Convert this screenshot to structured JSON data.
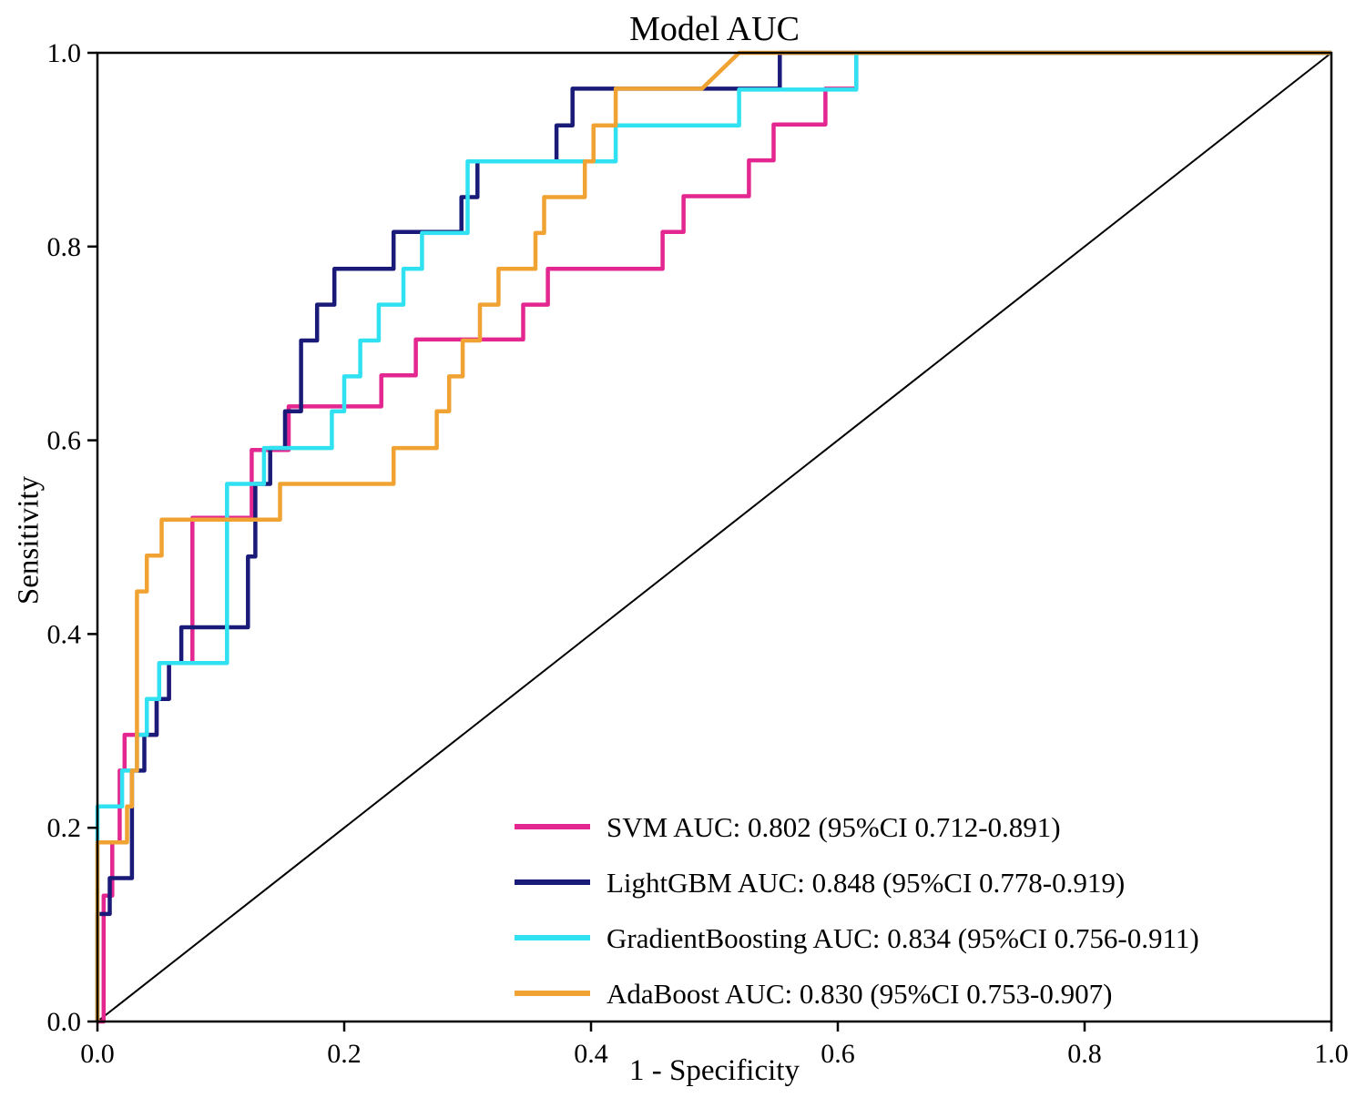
{
  "chart_data": {
    "type": "line",
    "subtype": "roc-step-curves",
    "title": "Model AUC",
    "xlabel": "1 - Specificity",
    "ylabel": "Sensitivity",
    "xlim": [
      0,
      1
    ],
    "ylim": [
      0,
      1
    ],
    "grid": false,
    "legend_position": "lower right",
    "xticks": [
      0,
      0.2,
      0.4,
      0.6,
      0.8,
      1.0
    ],
    "xtick_labels": [
      "0.0",
      "0.2",
      "0.4",
      "0.6",
      "0.8",
      "1.0"
    ],
    "yticks": [
      0,
      0.2,
      0.4,
      0.6,
      0.8,
      1.0
    ],
    "ytick_labels": [
      "0.0",
      "0.2",
      "0.4",
      "0.6",
      "0.8",
      "1.0"
    ],
    "reference_line": {
      "name": "chance-diagonal",
      "points": [
        [
          0,
          0
        ],
        [
          1,
          1
        ]
      ],
      "color": "#000000"
    },
    "series": [
      {
        "name": "SVM",
        "label": "SVM AUC: 0.802 (95%CI 0.712-0.891)",
        "auc": "0.802",
        "ci": "0.712-0.891",
        "color": "#E32690",
        "points": [
          [
            0,
            0
          ],
          [
            0.005,
            0
          ],
          [
            0.005,
            0.13
          ],
          [
            0.012,
            0.13
          ],
          [
            0.012,
            0.185
          ],
          [
            0.018,
            0.185
          ],
          [
            0.018,
            0.259
          ],
          [
            0.022,
            0.259
          ],
          [
            0.022,
            0.296
          ],
          [
            0.048,
            0.296
          ],
          [
            0.048,
            0.333
          ],
          [
            0.058,
            0.333
          ],
          [
            0.058,
            0.37
          ],
          [
            0.077,
            0.37
          ],
          [
            0.077,
            0.52
          ],
          [
            0.125,
            0.52
          ],
          [
            0.125,
            0.59
          ],
          [
            0.155,
            0.59
          ],
          [
            0.155,
            0.635
          ],
          [
            0.23,
            0.635
          ],
          [
            0.23,
            0.667
          ],
          [
            0.258,
            0.667
          ],
          [
            0.258,
            0.704
          ],
          [
            0.345,
            0.704
          ],
          [
            0.345,
            0.74
          ],
          [
            0.365,
            0.74
          ],
          [
            0.365,
            0.777
          ],
          [
            0.458,
            0.777
          ],
          [
            0.458,
            0.815
          ],
          [
            0.475,
            0.815
          ],
          [
            0.475,
            0.852
          ],
          [
            0.528,
            0.852
          ],
          [
            0.528,
            0.889
          ],
          [
            0.548,
            0.889
          ],
          [
            0.548,
            0.926
          ],
          [
            0.59,
            0.926
          ],
          [
            0.59,
            0.963
          ],
          [
            0.615,
            0.963
          ],
          [
            0.615,
            1
          ],
          [
            1,
            1
          ]
        ]
      },
      {
        "name": "LightGBM",
        "label": "LightGBM AUC: 0.848 (95%CI 0.778-0.919)",
        "auc": "0.848",
        "ci": "0.778-0.919",
        "color": "#1A1A78",
        "points": [
          [
            0,
            0
          ],
          [
            0,
            0.111
          ],
          [
            0.01,
            0.111
          ],
          [
            0.01,
            0.148
          ],
          [
            0.028,
            0.148
          ],
          [
            0.028,
            0.259
          ],
          [
            0.038,
            0.259
          ],
          [
            0.038,
            0.296
          ],
          [
            0.048,
            0.296
          ],
          [
            0.048,
            0.333
          ],
          [
            0.058,
            0.333
          ],
          [
            0.058,
            0.37
          ],
          [
            0.068,
            0.37
          ],
          [
            0.068,
            0.407
          ],
          [
            0.122,
            0.407
          ],
          [
            0.122,
            0.48
          ],
          [
            0.128,
            0.48
          ],
          [
            0.128,
            0.555
          ],
          [
            0.14,
            0.555
          ],
          [
            0.14,
            0.592
          ],
          [
            0.152,
            0.592
          ],
          [
            0.152,
            0.63
          ],
          [
            0.165,
            0.63
          ],
          [
            0.165,
            0.703
          ],
          [
            0.178,
            0.703
          ],
          [
            0.178,
            0.74
          ],
          [
            0.192,
            0.74
          ],
          [
            0.192,
            0.777
          ],
          [
            0.24,
            0.777
          ],
          [
            0.24,
            0.815
          ],
          [
            0.295,
            0.815
          ],
          [
            0.295,
            0.851
          ],
          [
            0.308,
            0.851
          ],
          [
            0.308,
            0.888
          ],
          [
            0.372,
            0.888
          ],
          [
            0.372,
            0.925
          ],
          [
            0.385,
            0.925
          ],
          [
            0.385,
            0.963
          ],
          [
            0.553,
            0.963
          ],
          [
            0.553,
            1
          ],
          [
            1,
            1
          ]
        ]
      },
      {
        "name": "GradientBoosting",
        "label": "GradientBoosting AUC: 0.834 (95%CI 0.756-0.911)",
        "auc": "0.834",
        "ci": "0.756-0.911",
        "color": "#2FE1F1",
        "points": [
          [
            0,
            0
          ],
          [
            0,
            0.222
          ],
          [
            0.02,
            0.222
          ],
          [
            0.02,
            0.259
          ],
          [
            0.032,
            0.259
          ],
          [
            0.032,
            0.296
          ],
          [
            0.04,
            0.296
          ],
          [
            0.04,
            0.333
          ],
          [
            0.05,
            0.333
          ],
          [
            0.05,
            0.37
          ],
          [
            0.105,
            0.37
          ],
          [
            0.105,
            0.555
          ],
          [
            0.135,
            0.555
          ],
          [
            0.135,
            0.592
          ],
          [
            0.19,
            0.592
          ],
          [
            0.19,
            0.63
          ],
          [
            0.2,
            0.63
          ],
          [
            0.2,
            0.666
          ],
          [
            0.213,
            0.666
          ],
          [
            0.213,
            0.703
          ],
          [
            0.228,
            0.703
          ],
          [
            0.228,
            0.74
          ],
          [
            0.248,
            0.74
          ],
          [
            0.248,
            0.777
          ],
          [
            0.263,
            0.777
          ],
          [
            0.263,
            0.814
          ],
          [
            0.3,
            0.814
          ],
          [
            0.3,
            0.888
          ],
          [
            0.42,
            0.888
          ],
          [
            0.42,
            0.925
          ],
          [
            0.52,
            0.925
          ],
          [
            0.52,
            0.962
          ],
          [
            0.615,
            0.962
          ],
          [
            0.615,
            1
          ],
          [
            1,
            1
          ]
        ]
      },
      {
        "name": "AdaBoost",
        "label": "AdaBoost AUC: 0.830 (95%CI 0.753-0.907)",
        "auc": "0.830",
        "ci": "0.753-0.907",
        "color": "#F0A232",
        "points": [
          [
            0,
            0
          ],
          [
            0,
            0.185
          ],
          [
            0.024,
            0.185
          ],
          [
            0.024,
            0.222
          ],
          [
            0.028,
            0.222
          ],
          [
            0.028,
            0.259
          ],
          [
            0.032,
            0.259
          ],
          [
            0.032,
            0.444
          ],
          [
            0.04,
            0.444
          ],
          [
            0.04,
            0.481
          ],
          [
            0.052,
            0.481
          ],
          [
            0.052,
            0.518
          ],
          [
            0.148,
            0.518
          ],
          [
            0.148,
            0.555
          ],
          [
            0.24,
            0.555
          ],
          [
            0.24,
            0.592
          ],
          [
            0.275,
            0.592
          ],
          [
            0.275,
            0.63
          ],
          [
            0.285,
            0.63
          ],
          [
            0.285,
            0.666
          ],
          [
            0.296,
            0.666
          ],
          [
            0.296,
            0.703
          ],
          [
            0.31,
            0.703
          ],
          [
            0.31,
            0.74
          ],
          [
            0.325,
            0.74
          ],
          [
            0.325,
            0.777
          ],
          [
            0.355,
            0.777
          ],
          [
            0.355,
            0.814
          ],
          [
            0.362,
            0.814
          ],
          [
            0.362,
            0.851
          ],
          [
            0.395,
            0.851
          ],
          [
            0.395,
            0.888
          ],
          [
            0.402,
            0.888
          ],
          [
            0.402,
            0.925
          ],
          [
            0.42,
            0.925
          ],
          [
            0.42,
            0.963
          ],
          [
            0.49,
            0.963
          ],
          [
            0.52,
            1
          ],
          [
            1,
            1
          ]
        ]
      }
    ]
  }
}
